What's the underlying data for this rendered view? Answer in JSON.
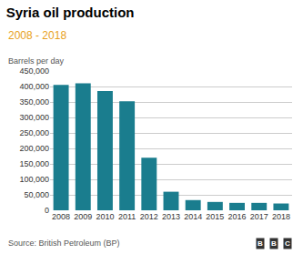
{
  "chart_data": {
    "type": "bar",
    "title": "Syria oil production",
    "subtitle": "2008 - 2018",
    "ylabel": "Barrels per day",
    "source": "Source: British Petroleum (BP)",
    "annotations": [
      "B",
      "B",
      "C"
    ],
    "categories": [
      "2008",
      "2009",
      "2010",
      "2011",
      "2012",
      "2013",
      "2014",
      "2015",
      "2016",
      "2017",
      "2018"
    ],
    "values": [
      405000,
      410000,
      385000,
      352000,
      170000,
      60000,
      33000,
      27000,
      24000,
      24000,
      22000
    ],
    "color": "#1a7d8e",
    "ylim": [
      0,
      450000
    ],
    "yticks": [
      0,
      {
        "value": 50000,
        "label": "50,000"
      },
      {
        "value": 100000,
        "label": "100,000"
      },
      {
        "value": 150000,
        "label": "150,000"
      },
      {
        "value": 200000,
        "label": "200,000"
      },
      {
        "value": 250000,
        "label": "250,000"
      },
      {
        "value": 300000,
        "label": "300,000"
      },
      {
        "value": 350000,
        "label": "350,000"
      },
      {
        "value": 400000,
        "label": "400,000"
      },
      {
        "value": 450000,
        "label": "450,000"
      }
    ],
    "grid": true
  }
}
